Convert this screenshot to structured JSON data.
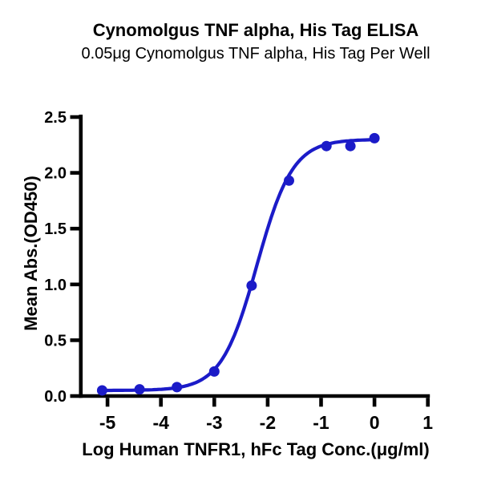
{
  "chart_data": {
    "type": "scatter",
    "title": "Cynomolgus TNF alpha, His Tag ELISA",
    "subtitle": "0.05μg Cynomolgus TNF alpha, His Tag Per Well",
    "xlabel": "Log Human TNFR1, hFc Tag Conc.(μg/ml)",
    "ylabel": "Mean Abs.(OD450)",
    "xlim": [
      -5.5,
      1
    ],
    "ylim": [
      0,
      2.5
    ],
    "grid": false,
    "legend": false,
    "marker": "circle",
    "x_ticks": {
      "values": [
        -5,
        -4,
        -3,
        -2,
        -1,
        0,
        1
      ],
      "labels": [
        "-5",
        "-4",
        "-3",
        "-2",
        "-1",
        "0",
        "1"
      ]
    },
    "y_ticks": {
      "values": [
        0,
        0.5,
        1.0,
        1.5,
        2.0,
        2.5
      ],
      "labels": [
        "0.0",
        "0.5",
        "1.0",
        "1.5",
        "2.0",
        "2.5"
      ]
    },
    "points": {
      "x": [
        -5.1,
        -4.4,
        -3.7,
        -3.0,
        -2.3,
        -1.6,
        -0.9,
        -0.45,
        0.0
      ],
      "y": [
        0.05,
        0.06,
        0.08,
        0.22,
        0.99,
        1.93,
        2.24,
        2.24,
        2.31
      ]
    },
    "fit_curve": {
      "model": "4PL",
      "bottom": 0.05,
      "top": 2.3,
      "log_ec50": -2.2,
      "hill_slope": 1.3,
      "x_range": [
        -5.1,
        0.03
      ]
    },
    "colors": {
      "series": "#1b1bc8",
      "axis": "#000000",
      "text": "#000000",
      "background": "#ffffff"
    }
  }
}
